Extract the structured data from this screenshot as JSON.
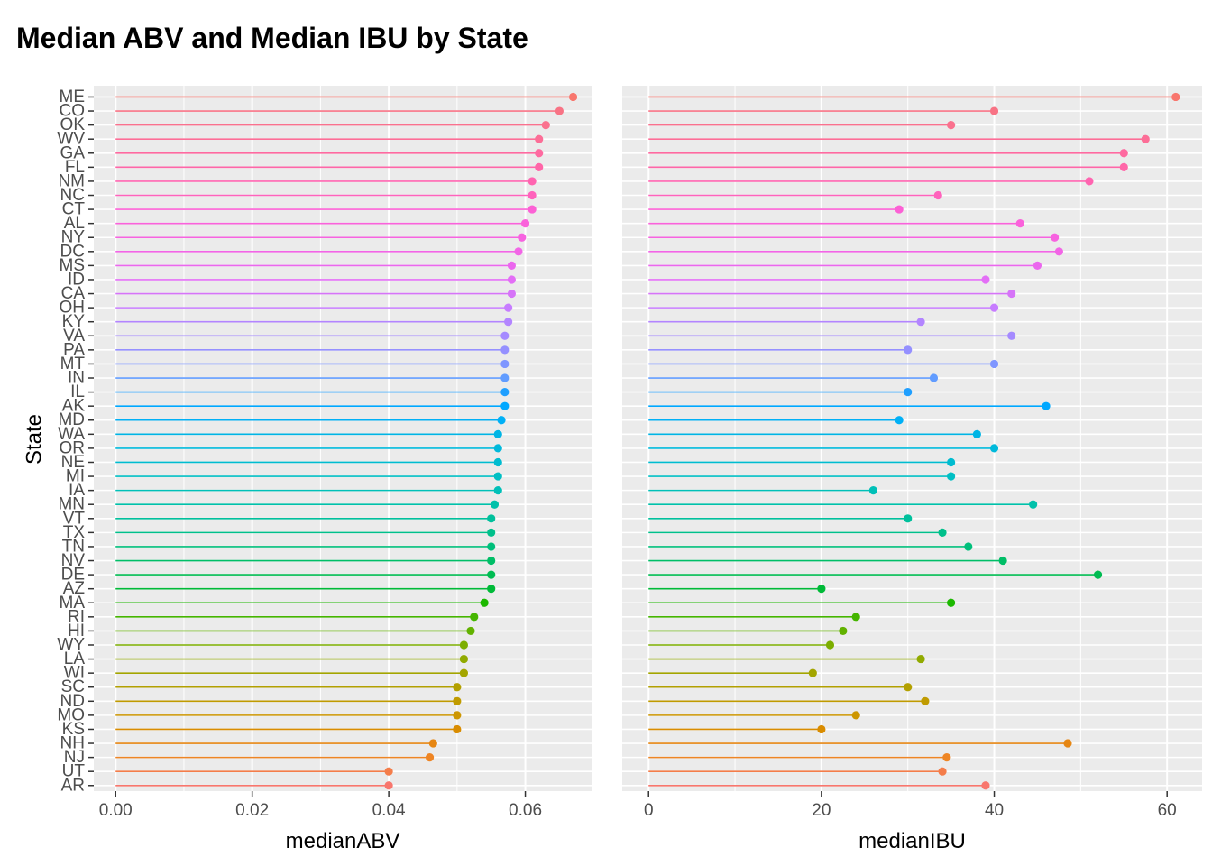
{
  "chart_data": {
    "type": "lollipop",
    "title": "Median ABV and Median IBU by State",
    "ylabel": "State",
    "states": [
      "AR",
      "UT",
      "NJ",
      "NH",
      "KS",
      "MO",
      "ND",
      "SC",
      "WI",
      "LA",
      "WY",
      "HI",
      "RI",
      "MA",
      "AZ",
      "DE",
      "NV",
      "TN",
      "TX",
      "VT",
      "MN",
      "IA",
      "MI",
      "NE",
      "OR",
      "WA",
      "MD",
      "AK",
      "IL",
      "IN",
      "MT",
      "PA",
      "VA",
      "KY",
      "OH",
      "CA",
      "ID",
      "MS",
      "DC",
      "NY",
      "AL",
      "CT",
      "NC",
      "NM",
      "FL",
      "GA",
      "WV",
      "OK",
      "CO",
      "ME"
    ],
    "panels": [
      {
        "xlabel": "medianABV",
        "xlim": [
          -0.0032,
          0.0697
        ],
        "xticks": [
          0,
          0.02,
          0.04,
          0.06
        ],
        "xtick_labels": [
          "0.00",
          "0.02",
          "0.04",
          "0.06"
        ],
        "values": [
          0.04,
          0.04,
          0.046,
          0.0465,
          0.05,
          0.05,
          0.05,
          0.05,
          0.051,
          0.051,
          0.051,
          0.052,
          0.0525,
          0.054,
          0.055,
          0.055,
          0.055,
          0.055,
          0.055,
          0.055,
          0.0555,
          0.056,
          0.056,
          0.056,
          0.056,
          0.056,
          0.0565,
          0.057,
          0.057,
          0.057,
          0.057,
          0.057,
          0.057,
          0.0575,
          0.0575,
          0.058,
          0.058,
          0.058,
          0.059,
          0.0595,
          0.06,
          0.061,
          0.061,
          0.061,
          0.062,
          0.062,
          0.062,
          0.063,
          0.065,
          0.067
        ]
      },
      {
        "xlabel": "medianIBU",
        "xlim": [
          -3.05,
          64.05
        ],
        "xticks": [
          0,
          20,
          40,
          60
        ],
        "xtick_labels": [
          "0",
          "20",
          "40",
          "60"
        ],
        "values": [
          39,
          34,
          34.5,
          48.5,
          20,
          24,
          32,
          30,
          19,
          31.5,
          21,
          22.5,
          24,
          35,
          20,
          52,
          41,
          37,
          34,
          30,
          44.5,
          26,
          35,
          35,
          40,
          38,
          29,
          46,
          30,
          33,
          40,
          30,
          42,
          31.5,
          40,
          42,
          39,
          45,
          47.5,
          47,
          43,
          29,
          33.5,
          51,
          55,
          55,
          57.5,
          35,
          40,
          61
        ]
      }
    ],
    "state_colors": [
      "#F8766D",
      "#F47D4A",
      "#EE8524",
      "#E68613",
      "#D98C00",
      "#CD9600",
      "#C09B00",
      "#B3A000",
      "#A3A500",
      "#91AA00",
      "#7CAE00",
      "#62B200",
      "#45B500",
      "#1CB800",
      "#00BA38",
      "#00BC52",
      "#00BE67",
      "#00BF7B",
      "#00C08B",
      "#00C09C",
      "#00C1AA",
      "#00C0B8",
      "#00BFC4",
      "#00BCD0",
      "#00B9DB",
      "#00B5E5",
      "#00B0F6",
      "#00A8FF",
      "#1F9FFF",
      "#619CFF",
      "#7F96FF",
      "#9590FF",
      "#A58AFF",
      "#B385FF",
      "#C77CFF",
      "#D674F8",
      "#E36EF6",
      "#EB67EE",
      "#F265E6",
      "#F763E0",
      "#FA62DB",
      "#FC61D5",
      "#FF62BC",
      "#FF64B0",
      "#FF66A8",
      "#FE6AA0",
      "#FC6E97",
      "#FA718E",
      "#F87385",
      "#F8766D"
    ],
    "panel_background": "#EBEBEB",
    "grid_color": "#FFFFFF"
  }
}
